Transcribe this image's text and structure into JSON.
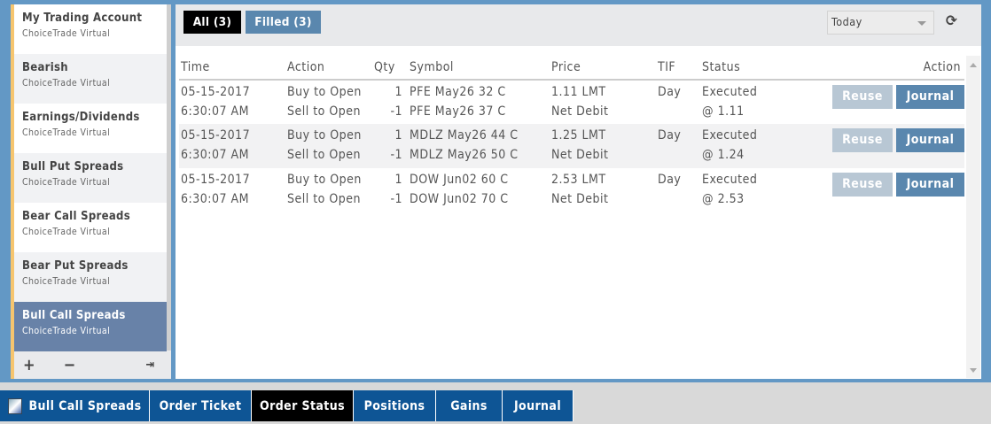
{
  "sidebar": {
    "items": [
      {
        "title": "My Trading Account",
        "sub": "ChoiceTrade Virtual"
      },
      {
        "title": "Bearish",
        "sub": "ChoiceTrade Virtual"
      },
      {
        "title": "Earnings/Dividends",
        "sub": "ChoiceTrade Virtual"
      },
      {
        "title": "Bull Put Spreads",
        "sub": "ChoiceTrade Virtual"
      },
      {
        "title": "Bear Call Spreads",
        "sub": "ChoiceTrade Virtual"
      },
      {
        "title": "Bear Put Spreads",
        "sub": "ChoiceTrade Virtual"
      },
      {
        "title": "Bull Call Spreads",
        "sub": "ChoiceTrade Virtual",
        "active": true
      }
    ],
    "footer": {
      "add": "+",
      "remove": "−",
      "export": "⇥"
    }
  },
  "toolbar": {
    "all": "All (3)",
    "filled": "Filled (3)",
    "period": "Today",
    "refresh": "⟳"
  },
  "table": {
    "headers": [
      "Time",
      "Action",
      "Qty",
      "Symbol",
      "Price",
      "TIF",
      "Status",
      "Action"
    ],
    "rows": [
      {
        "date": "05-15-2017",
        "time": "6:30:07 AM",
        "a1": "Buy to Open",
        "a2": "Sell to Open",
        "q1": "1",
        "q2": "-1",
        "s1": "PFE May26 32 C",
        "s2": "PFE May26 37 C",
        "p1": "1.11 LMT",
        "p2": "Net Debit",
        "tif": "Day",
        "st1": "Executed",
        "st2": "@ 1.11",
        "reuse": "Reuse",
        "journal": "Journal"
      },
      {
        "date": "05-15-2017",
        "time": "6:30:07 AM",
        "a1": "Buy to Open",
        "a2": "Sell to Open",
        "q1": "1",
        "q2": "-1",
        "s1": "MDLZ May26 44 C",
        "s2": "MDLZ May26 50 C",
        "p1": "1.25 LMT",
        "p2": "Net Debit",
        "tif": "Day",
        "st1": "Executed",
        "st2": "@ 1.24",
        "reuse": "Reuse",
        "journal": "Journal"
      },
      {
        "date": "05-15-2017",
        "time": "6:30:07 AM",
        "a1": "Buy to Open",
        "a2": "Sell to Open",
        "q1": "1",
        "q2": "-1",
        "s1": "DOW Jun02 60 C",
        "s2": "DOW Jun02 70 C",
        "p1": "2.53 LMT",
        "p2": "Net Debit",
        "tif": "Day",
        "st1": "Executed",
        "st2": "@ 2.53",
        "reuse": "Reuse",
        "journal": "Journal"
      }
    ]
  },
  "tabs": [
    "Bull Call Spreads",
    "Order Ticket",
    "Order Status",
    "Positions",
    "Gains",
    "Journal"
  ],
  "colors": {
    "accent": "#0e5595",
    "active_tab": "#000000",
    "sidebar_active": "#6882a8",
    "journal_btn": "#5a87ae",
    "reuse_btn": "#b8c7d4"
  }
}
